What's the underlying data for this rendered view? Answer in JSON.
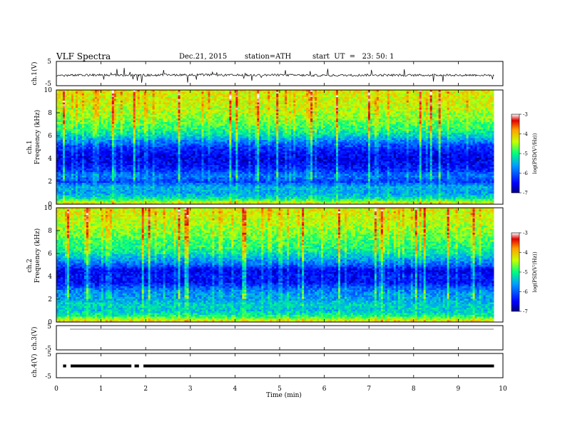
{
  "header": {
    "title": "VLF Spectra",
    "date": "Dec.21, 2015",
    "station": "station=ATH",
    "start": "start  UT  =   23: 50: 1"
  },
  "chart_data": [
    {
      "type": "line",
      "panel": "ch1-waveform",
      "ylabel": "ch.1(V)",
      "ylim": [
        -5,
        5
      ],
      "yticks": [
        "5",
        "-5"
      ],
      "x": [
        0,
        1,
        2,
        3,
        4,
        5,
        6,
        7,
        8,
        9,
        9.8
      ],
      "values": [
        -0.8,
        -0.6,
        -0.7,
        -0.5,
        -0.7,
        -0.6,
        -0.8,
        -0.6,
        -0.7,
        -0.6,
        -0.7
      ],
      "note_color": "#000000"
    },
    {
      "type": "heatmap",
      "panel": "ch1-spectrogram",
      "ylabel_top": "ch.1",
      "ylabel": "Frequency (kHz)",
      "ylim": [
        0,
        10
      ],
      "yticks": [
        "0",
        "2",
        "4",
        "6",
        "8",
        "10"
      ],
      "xlim": [
        0,
        9.8
      ],
      "freq_profile_kHz": [
        0,
        0.5,
        1,
        1.5,
        2,
        2.5,
        3,
        3.5,
        4,
        4.5,
        5,
        5.5,
        6,
        6.5,
        7,
        7.5,
        8,
        8.5,
        9,
        9.5,
        10
      ],
      "logpsd_profile": [
        -4.0,
        -5.2,
        -5.6,
        -5.5,
        -6.2,
        -5.8,
        -6.3,
        -6.5,
        -6.6,
        -6.5,
        -6.2,
        -5.8,
        -5.3,
        -5.0,
        -4.8,
        -4.6,
        -4.5,
        -4.4,
        -4.3,
        -4.3,
        -4.2
      ],
      "colorbar": {
        "label": "log(PSD(V²/Hz))",
        "ticks": [
          "-3",
          "-4",
          "-5",
          "-6",
          "-7"
        ],
        "range": [
          -7,
          -3
        ]
      }
    },
    {
      "type": "heatmap",
      "panel": "ch2-spectrogram",
      "ylabel_top": "ch.2",
      "ylabel": "Frequency (kHz)",
      "ylim": [
        0,
        10
      ],
      "yticks": [
        "0",
        "2",
        "4",
        "6",
        "8",
        "10"
      ],
      "xlim": [
        0,
        9.8
      ],
      "freq_profile_kHz": [
        0,
        0.5,
        1,
        1.5,
        2,
        2.5,
        3,
        3.5,
        4,
        4.5,
        5,
        5.5,
        6,
        6.5,
        7,
        7.5,
        8,
        8.5,
        9,
        9.5,
        10
      ],
      "logpsd_profile": [
        -4.0,
        -5.0,
        -5.4,
        -5.3,
        -5.6,
        -5.7,
        -6.0,
        -6.5,
        -6.4,
        -6.6,
        -6.0,
        -5.6,
        -5.2,
        -5.0,
        -4.9,
        -4.7,
        -4.6,
        -4.5,
        -4.4,
        -4.3,
        -4.3
      ],
      "colorbar": {
        "label": "log(PSD(V²/Hz))",
        "ticks": [
          "-3",
          "-4",
          "-5",
          "-6",
          "-7"
        ],
        "range": [
          -7,
          -3
        ]
      }
    },
    {
      "type": "line",
      "panel": "ch3-waveform",
      "ylabel": "ch.3(V)",
      "ylim": [
        -5,
        5
      ],
      "yticks": [
        "5",
        "-5"
      ],
      "x": [
        0,
        9.8
      ],
      "values": [
        0,
        0
      ]
    },
    {
      "type": "line",
      "panel": "ch4-waveform",
      "ylabel": "ch.4(V)",
      "ylim": [
        -5,
        5
      ],
      "yticks": [
        "5",
        "-5"
      ],
      "x": [
        0,
        9.8
      ],
      "values": [
        0,
        0
      ],
      "gaps_min": [
        [
          0.22,
          0.32
        ],
        [
          1.68,
          1.75
        ],
        [
          1.85,
          1.95
        ]
      ]
    }
  ],
  "xaxis": {
    "label": "Time  (min)",
    "ticks": [
      "0",
      "1",
      "2",
      "3",
      "4",
      "5",
      "6",
      "7",
      "8",
      "9",
      "10"
    ],
    "xlim": [
      0,
      10
    ]
  }
}
